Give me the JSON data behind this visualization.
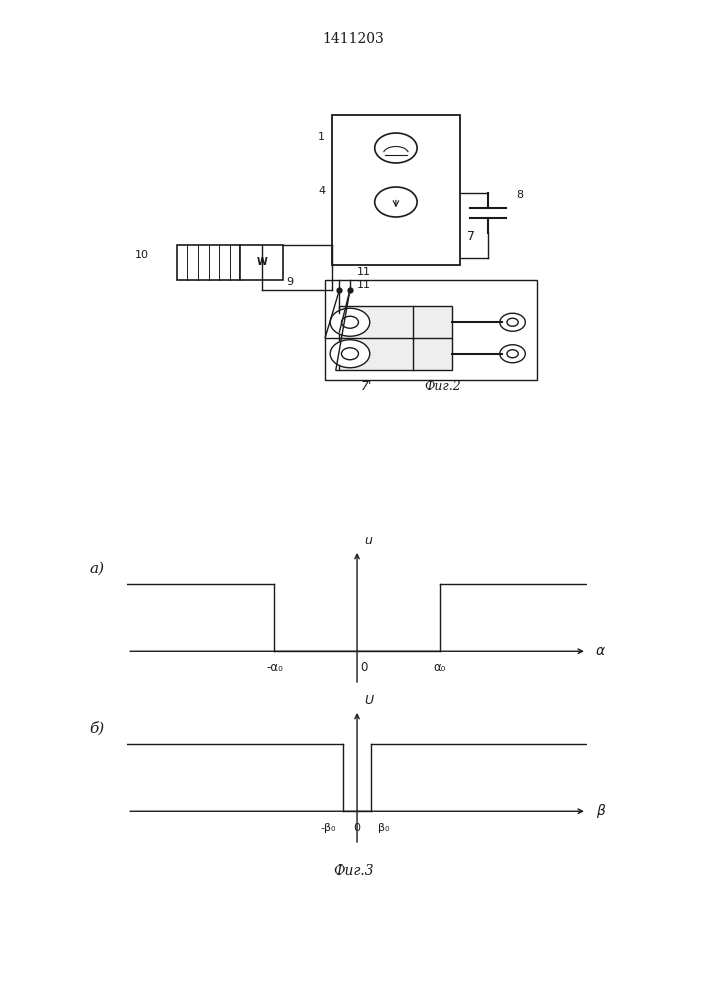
{
  "title": "1411203",
  "title_fontsize": 10,
  "fig2_caption": "Фиг.2",
  "fig3_caption": "Фиг.3",
  "background_color": "#ffffff",
  "line_color": "#1a1a1a",
  "label_a": "а)",
  "label_b": "б)",
  "axis_a_xlabel": "α",
  "axis_a_ylabel": "u",
  "axis_b_xlabel": "β",
  "axis_b_ylabel": "U",
  "tick_neg_alpha": "-α₀",
  "tick_pos_alpha": "α₀",
  "tick_zero_alpha": "0",
  "tick_neg_beta": "-β₀",
  "tick_pos_beta": "β₀",
  "tick_zero_beta": "0"
}
